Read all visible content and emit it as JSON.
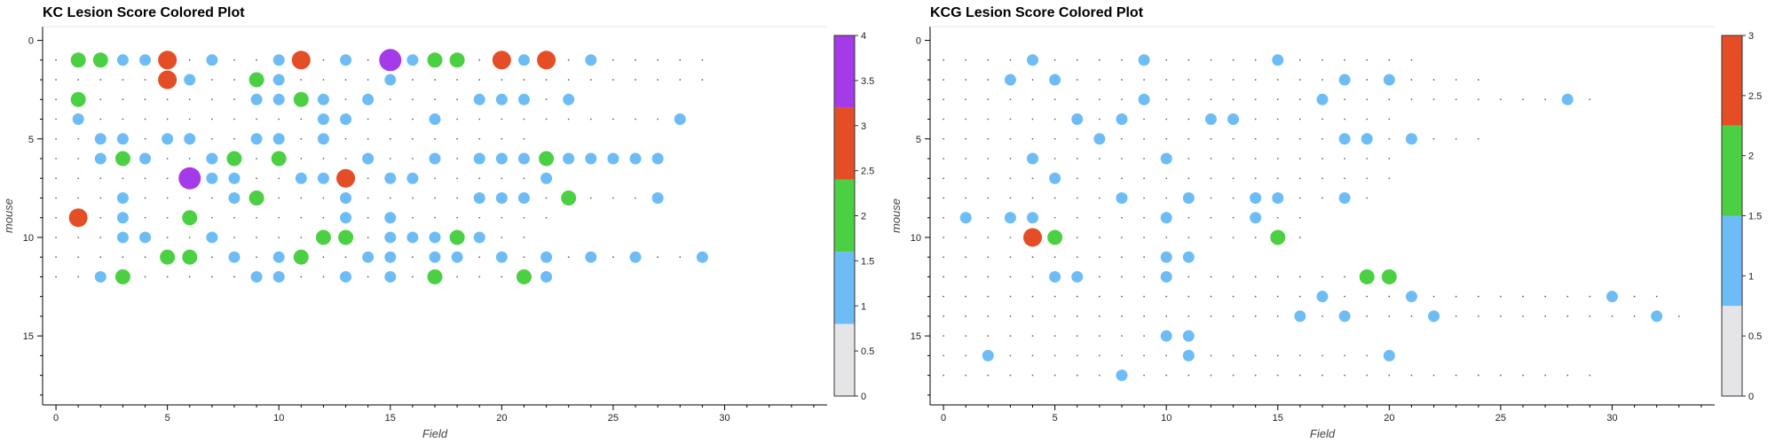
{
  "colors": {
    "score0": "#e5e5e8",
    "score1": "#6dbcf6",
    "score2": "#4bd043",
    "score3": "#e54d26",
    "score4": "#a43ae8",
    "dot": "#666666",
    "axis": "#000000"
  },
  "chart_data": [
    {
      "type": "scatter",
      "title": "KC Lesion Score Colored Plot",
      "xlabel": "Field",
      "ylabel": "mouse",
      "xlim": [
        -0.6,
        34.6
      ],
      "ylim": [
        -0.7,
        18.5
      ],
      "y_inverted": true,
      "x_ticks": [
        0,
        5,
        10,
        15,
        20,
        25,
        30
      ],
      "y_ticks": [
        0,
        5,
        10,
        15
      ],
      "colorbar": {
        "min": 0,
        "max": 4,
        "ticks": [
          0,
          0.5,
          1,
          1.5,
          2,
          2.5,
          3,
          3.5,
          4
        ]
      },
      "encoding": "size and color by lesion score",
      "rows": [
        {
          "mouse": 1,
          "fields": 30,
          "scores": [
            0,
            2,
            2,
            1,
            1,
            3,
            0,
            1,
            0,
            0,
            1,
            3,
            0,
            1,
            0,
            4,
            1,
            2,
            2,
            0,
            3,
            1,
            3,
            0,
            1,
            0,
            0,
            0,
            0,
            0
          ]
        },
        {
          "mouse": 2,
          "fields": 30,
          "scores": [
            0,
            0,
            0,
            0,
            0,
            3,
            1,
            0,
            0,
            2,
            1,
            0,
            0,
            0,
            0,
            1,
            0,
            0,
            0,
            0,
            0,
            0,
            0,
            0,
            0,
            0,
            0,
            0,
            0,
            0
          ]
        },
        {
          "mouse": 3,
          "fields": 24,
          "scores": [
            0,
            2,
            0,
            0,
            0,
            0,
            0,
            0,
            0,
            1,
            1,
            2,
            1,
            0,
            1,
            0,
            0,
            0,
            0,
            1,
            1,
            1,
            0,
            1
          ]
        },
        {
          "mouse": 4,
          "fields": 29,
          "scores": [
            0,
            1,
            0,
            0,
            0,
            0,
            0,
            0,
            0,
            0,
            0,
            0,
            1,
            1,
            0,
            0,
            0,
            1,
            0,
            0,
            0,
            0,
            0,
            0,
            0,
            0,
            0,
            0,
            1
          ]
        },
        {
          "mouse": 5,
          "fields": 22,
          "scores": [
            0,
            0,
            1,
            1,
            0,
            1,
            1,
            0,
            0,
            1,
            1,
            0,
            1,
            0,
            0,
            0,
            0,
            0,
            0,
            0,
            0,
            0
          ]
        },
        {
          "mouse": 6,
          "fields": 28,
          "scores": [
            0,
            0,
            1,
            2,
            1,
            0,
            0,
            1,
            2,
            0,
            2,
            0,
            0,
            0,
            1,
            0,
            0,
            1,
            0,
            1,
            1,
            1,
            2,
            1,
            1,
            1,
            1,
            1
          ]
        },
        {
          "mouse": 7,
          "fields": 23,
          "scores": [
            0,
            0,
            0,
            0,
            0,
            0,
            4,
            1,
            1,
            0,
            0,
            1,
            1,
            3,
            0,
            1,
            1,
            0,
            0,
            0,
            0,
            0,
            1
          ]
        },
        {
          "mouse": 8,
          "fields": 28,
          "scores": [
            0,
            0,
            0,
            1,
            0,
            0,
            0,
            0,
            1,
            2,
            0,
            0,
            0,
            1,
            0,
            0,
            0,
            0,
            0,
            1,
            1,
            1,
            0,
            2,
            0,
            0,
            0,
            1
          ]
        },
        {
          "mouse": 9,
          "fields": 23,
          "scores": [
            0,
            3,
            0,
            1,
            0,
            0,
            2,
            0,
            0,
            0,
            0,
            0,
            0,
            1,
            0,
            1,
            0,
            0,
            0,
            0,
            0,
            0,
            0
          ]
        },
        {
          "mouse": 10,
          "fields": 22,
          "scores": [
            0,
            0,
            0,
            1,
            1,
            0,
            0,
            1,
            0,
            0,
            0,
            0,
            2,
            2,
            0,
            1,
            1,
            1,
            2,
            1,
            0,
            0
          ]
        },
        {
          "mouse": 11,
          "fields": 30,
          "scores": [
            0,
            0,
            0,
            0,
            0,
            2,
            2,
            0,
            1,
            0,
            1,
            2,
            0,
            0,
            1,
            1,
            0,
            1,
            1,
            0,
            1,
            0,
            1,
            0,
            1,
            0,
            1,
            0,
            0,
            1
          ]
        },
        {
          "mouse": 12,
          "fields": 23,
          "scores": [
            0,
            0,
            1,
            2,
            0,
            0,
            0,
            0,
            0,
            1,
            1,
            0,
            0,
            1,
            0,
            1,
            0,
            2,
            0,
            0,
            0,
            2,
            1
          ]
        }
      ]
    },
    {
      "type": "scatter",
      "title": "KCG Lesion Score Colored Plot",
      "xlabel": "Field",
      "ylabel": "mouse",
      "xlim": [
        -0.6,
        34.6
      ],
      "ylim": [
        -0.7,
        18.5
      ],
      "y_inverted": true,
      "x_ticks": [
        0,
        5,
        10,
        15,
        20,
        25,
        30
      ],
      "y_ticks": [
        0,
        5,
        10,
        15
      ],
      "colorbar": {
        "min": 0,
        "max": 3,
        "ticks": [
          0,
          0.5,
          1,
          1.5,
          2,
          2.5,
          3
        ]
      },
      "encoding": "size and color by lesion score",
      "rows": [
        {
          "mouse": 1,
          "fields": 22,
          "scores": [
            0,
            0,
            0,
            0,
            1,
            0,
            0,
            0,
            0,
            1,
            0,
            0,
            0,
            0,
            0,
            1,
            0,
            0,
            0,
            0,
            0,
            0
          ]
        },
        {
          "mouse": 2,
          "fields": 25,
          "scores": [
            0,
            0,
            0,
            1,
            0,
            1,
            0,
            0,
            0,
            0,
            0,
            0,
            0,
            0,
            0,
            0,
            0,
            0,
            1,
            0,
            1,
            0,
            0,
            0,
            0
          ]
        },
        {
          "mouse": 3,
          "fields": 30,
          "scores": [
            0,
            0,
            0,
            0,
            0,
            0,
            0,
            0,
            0,
            1,
            0,
            0,
            0,
            0,
            0,
            0,
            0,
            1,
            0,
            0,
            0,
            0,
            0,
            0,
            0,
            0,
            0,
            0,
            1,
            0
          ]
        },
        {
          "mouse": 4,
          "fields": 21,
          "scores": [
            0,
            0,
            0,
            0,
            0,
            0,
            1,
            0,
            1,
            0,
            0,
            0,
            1,
            1,
            0,
            0,
            0,
            0,
            0,
            0,
            0
          ]
        },
        {
          "mouse": 5,
          "fields": 25,
          "scores": [
            0,
            0,
            0,
            0,
            0,
            0,
            0,
            1,
            0,
            0,
            0,
            0,
            0,
            0,
            0,
            0,
            0,
            0,
            1,
            1,
            0,
            1,
            0,
            0,
            0
          ]
        },
        {
          "mouse": 6,
          "fields": 21,
          "scores": [
            0,
            0,
            0,
            0,
            1,
            0,
            0,
            0,
            0,
            0,
            1,
            0,
            0,
            0,
            0,
            0,
            0,
            0,
            0,
            0,
            0
          ]
        },
        {
          "mouse": 7,
          "fields": 21,
          "scores": [
            0,
            0,
            0,
            0,
            0,
            1,
            0,
            0,
            0,
            0,
            0,
            0,
            0,
            0,
            0,
            0,
            0,
            0,
            0,
            0,
            0
          ]
        },
        {
          "mouse": 8,
          "fields": 20,
          "scores": [
            0,
            0,
            0,
            0,
            0,
            0,
            0,
            0,
            1,
            0,
            0,
            1,
            0,
            0,
            1,
            1,
            0,
            0,
            1,
            0
          ]
        },
        {
          "mouse": 9,
          "fields": 17,
          "scores": [
            0,
            1,
            0,
            1,
            1,
            0,
            0,
            0,
            0,
            0,
            1,
            0,
            0,
            0,
            1,
            0,
            0
          ]
        },
        {
          "mouse": 10,
          "fields": 17,
          "scores": [
            0,
            0,
            0,
            0,
            3,
            2,
            0,
            0,
            0,
            0,
            0,
            0,
            0,
            0,
            0,
            2,
            0
          ]
        },
        {
          "mouse": 11,
          "fields": 12,
          "scores": [
            0,
            0,
            0,
            0,
            0,
            0,
            0,
            0,
            0,
            0,
            1,
            1
          ]
        },
        {
          "mouse": 12,
          "fields": 21,
          "scores": [
            0,
            0,
            0,
            0,
            0,
            1,
            1,
            0,
            0,
            0,
            1,
            0,
            0,
            0,
            0,
            0,
            0,
            0,
            0,
            2,
            2
          ]
        },
        {
          "mouse": 13,
          "fields": 33,
          "scores": [
            0,
            0,
            0,
            0,
            0,
            0,
            0,
            0,
            0,
            0,
            0,
            0,
            0,
            0,
            0,
            0,
            0,
            1,
            0,
            0,
            0,
            1,
            0,
            0,
            0,
            0,
            0,
            0,
            0,
            0,
            1,
            0,
            0
          ]
        },
        {
          "mouse": 14,
          "fields": 34,
          "scores": [
            0,
            0,
            0,
            0,
            0,
            0,
            0,
            0,
            0,
            0,
            0,
            0,
            0,
            0,
            0,
            0,
            1,
            0,
            1,
            0,
            0,
            0,
            1,
            0,
            0,
            0,
            0,
            0,
            0,
            0,
            0,
            0,
            1,
            0
          ]
        },
        {
          "mouse": 15,
          "fields": 12,
          "scores": [
            0,
            0,
            0,
            0,
            0,
            0,
            0,
            0,
            0,
            0,
            1,
            1
          ]
        },
        {
          "mouse": 16,
          "fields": 21,
          "scores": [
            0,
            0,
            1,
            0,
            0,
            0,
            0,
            0,
            0,
            0,
            0,
            1,
            0,
            0,
            0,
            0,
            0,
            0,
            0,
            0,
            1
          ]
        },
        {
          "mouse": 17,
          "fields": 30,
          "scores": [
            0,
            0,
            0,
            0,
            0,
            0,
            0,
            0,
            1,
            0,
            0,
            0,
            0,
            0,
            0,
            0,
            0,
            0,
            0,
            0,
            0,
            0,
            0,
            0,
            0,
            0,
            0,
            0,
            0,
            0
          ]
        }
      ]
    }
  ]
}
